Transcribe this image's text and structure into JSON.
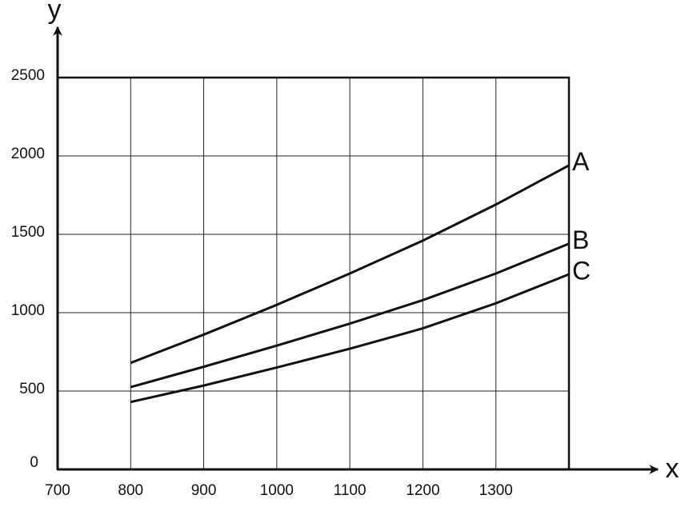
{
  "chart_data": {
    "type": "line",
    "x_label": "x",
    "y_label": "y",
    "x": [
      800,
      900,
      1000,
      1100,
      1200,
      1300,
      1400
    ],
    "series": [
      {
        "name": "A",
        "color": "#111111",
        "values": [
          680,
          860,
          1050,
          1250,
          1460,
          1690,
          1940
        ]
      },
      {
        "name": "B",
        "color": "#111111",
        "values": [
          525,
          655,
          790,
          930,
          1080,
          1250,
          1440
        ]
      },
      {
        "name": "C",
        "color": "#111111",
        "values": [
          430,
          535,
          650,
          770,
          900,
          1060,
          1245
        ]
      }
    ],
    "xlim": [
      700,
      1400
    ],
    "ylim": [
      0,
      2500
    ],
    "xticks": [
      700,
      800,
      900,
      1000,
      1100,
      1200,
      1300
    ],
    "yticks": [
      0,
      500,
      1000,
      1500,
      2000,
      2500
    ],
    "grid": true
  }
}
